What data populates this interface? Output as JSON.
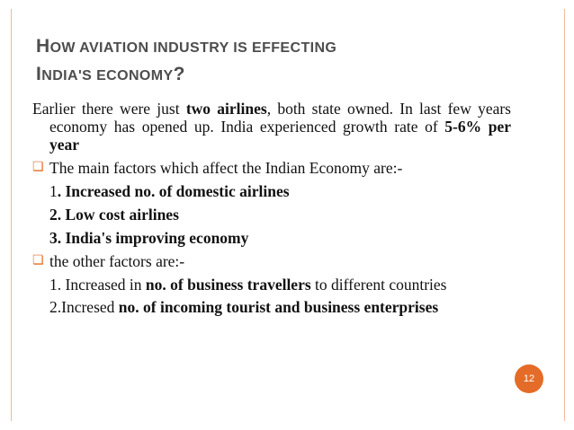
{
  "slide": {
    "title_line1": [
      "H",
      "OW AVIATION INDUSTRY IS EFFECTING"
    ],
    "title_line2": [
      "I",
      "NDIA'S ECONOMY",
      "?"
    ],
    "intro": {
      "t1": "Earlier there were just ",
      "b1": "two airlines",
      "t2": ", both state owned. In last few years economy has opened up. India experienced growth rate of ",
      "b2": "5-6% per year"
    },
    "bullet1": "The main factors which affect the Indian Economy are:-",
    "factors": [
      {
        "num": "1",
        "text": ". Increased no. of domestic airlines"
      },
      {
        "text": "2. Low cost airlines"
      },
      {
        "text": "3. India's improving economy"
      }
    ],
    "bullet2": "the other factors are:-",
    "other1": {
      "t1": "1. Increased in ",
      "b1": "no. of business travellers",
      "t2": " to different countries"
    },
    "other2": {
      "t1": "2.Incresed ",
      "b1": "no. of incoming tourist and business enterprises"
    },
    "page_number": "12",
    "colors": {
      "accent": "#e46c28",
      "title": "#4d4d4d",
      "frame": "#f0b99a"
    },
    "bullet_icon": "checkbox-square-icon"
  }
}
